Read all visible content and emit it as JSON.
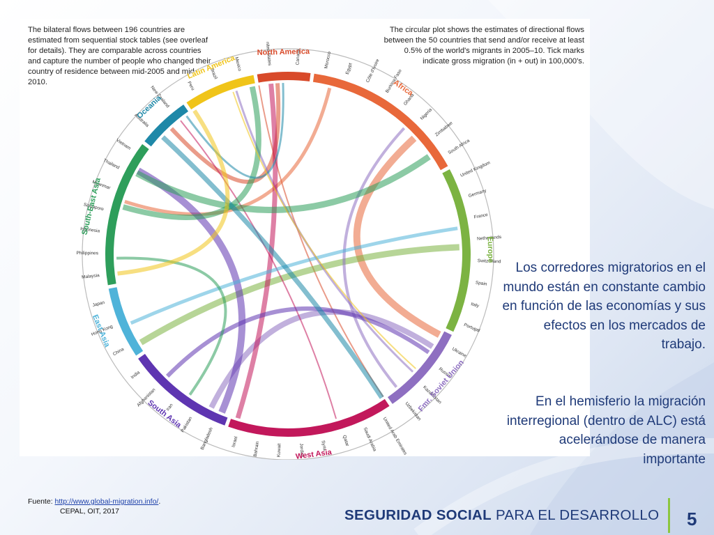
{
  "figure": {
    "desc_left": "The bilateral flows between 196 countries are estimated from sequential stock tables (see overleaf for details). They are comparable across countries and capture the number of people who changed their country of residence between mid-2005 and mid-2010.",
    "desc_right": "The circular plot shows the estimates of directional flows between the 50 countries that send and/or receive at least 0.5% of the world's migrants in 2005–10. Tick marks indicate gross migration (in + out) in 100,000's."
  },
  "chart_data": {
    "type": "chord",
    "regions": [
      {
        "name": "North America",
        "color": "#d84a2a",
        "countries": [
          "United States",
          "Canada"
        ]
      },
      {
        "name": "Africa",
        "color": "#e8683a",
        "countries": [
          "Morocco",
          "Egypt",
          "Côte d'Ivoire",
          "Burkina Faso",
          "Ghana",
          "Nigeria",
          "Zimbabwe",
          "South Africa"
        ]
      },
      {
        "name": "Europe",
        "color": "#7cb342",
        "countries": [
          "United Kingdom",
          "Germany",
          "France",
          "Netherlands",
          "Switzerland",
          "Spain",
          "Italy",
          "Portugal"
        ]
      },
      {
        "name": "Fmr. Soviet Union",
        "color": "#8e6fc1",
        "countries": [
          "Ukraine",
          "Russia",
          "Kazakhstan",
          "Uzbekistan"
        ]
      },
      {
        "name": "West Asia",
        "color": "#c2185b",
        "countries": [
          "United Arab Emirates",
          "Saudi Arabia",
          "Qatar",
          "Syria",
          "Jordan",
          "Kuwait",
          "Bahrain",
          "Israel"
        ]
      },
      {
        "name": "South Asia",
        "color": "#5e35b1",
        "countries": [
          "Bangladesh",
          "Pakistan",
          "Iran",
          "Afghanistan",
          "India"
        ]
      },
      {
        "name": "East Asia",
        "color": "#4fb3d9",
        "countries": [
          "China",
          "Hong Kong",
          "Japan"
        ]
      },
      {
        "name": "South-East Asia",
        "color": "#2e9e5b",
        "countries": [
          "Malaysia",
          "Philippines",
          "Indonesia",
          "Singapore",
          "Myanmar",
          "Thailand",
          "Vietnam"
        ]
      },
      {
        "name": "Oceania",
        "color": "#1e88a8",
        "countries": [
          "Australia",
          "New Zealand"
        ]
      },
      {
        "name": "Latin America",
        "color": "#f0c419",
        "countries": [
          "Peru",
          "Brazil",
          "Mexico"
        ]
      }
    ]
  },
  "side": {
    "p1": "Los corredores migratorios en el mundo están en constante cambio en función de las economías y sus efectos en los mercados de trabajo.",
    "p2": "En el hemisferio la migración interregional (dentro de ALC) está acelerándose de manera importante"
  },
  "footer": {
    "source_prefix": "Fuente: ",
    "source_url": "http://www.global-migration.info/",
    "source_suffix": ".",
    "source_line2": "CEPAL, OIT, 2017",
    "brand_bold": "SEGURIDAD SOCIAL",
    "brand_light": "PARA EL DESARROLLO",
    "page_number": "5"
  }
}
